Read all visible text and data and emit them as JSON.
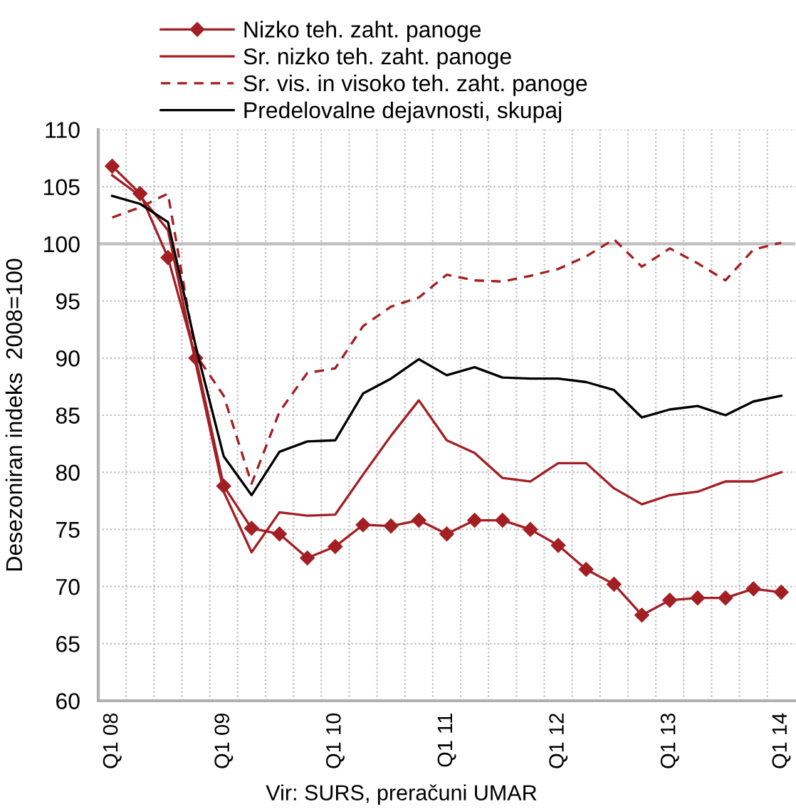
{
  "chart_data": {
    "type": "line",
    "ylabel": "Desezoniran indeks  2008=100",
    "annotations": [
      "Vir: SURS, preračuni UMAR"
    ],
    "categories": [
      "Q1 08",
      null,
      null,
      null,
      "Q1 09",
      null,
      null,
      null,
      "Q1 10",
      null,
      null,
      null,
      "Q1 11",
      null,
      null,
      null,
      "Q1 12",
      null,
      null,
      null,
      "Q1 13",
      null,
      null,
      null,
      "Q1 14"
    ],
    "series": [
      {
        "name": "Nizko teh. zaht. panoge",
        "color": "#a31f23",
        "marker": "diamond",
        "line_style": "solid",
        "values": [
          106.8,
          104.4,
          98.8,
          90.0,
          78.8,
          75.1,
          74.6,
          72.5,
          73.5,
          75.4,
          75.3,
          75.8,
          74.6,
          75.8,
          75.8,
          75.0,
          73.6,
          71.5,
          70.2,
          67.5,
          68.8,
          69.0,
          69.0,
          69.8,
          69.5
        ]
      },
      {
        "name": "Sr. nizko teh. zaht. panoge",
        "color": "#a31f23",
        "marker": "none",
        "line_style": "solid",
        "values": [
          106.0,
          104.2,
          101.2,
          89.5,
          78.3,
          73.0,
          76.5,
          76.2,
          76.3,
          79.8,
          83.2,
          86.3,
          82.8,
          81.7,
          79.5,
          79.2,
          80.8,
          80.8,
          78.6,
          77.2,
          78.0,
          78.3,
          79.2,
          79.2,
          80.0
        ]
      },
      {
        "name": "Sr. vis. in visoko teh. zaht. panoge",
        "color": "#a31f23",
        "marker": "none",
        "line_style": "dashed",
        "values": [
          102.3,
          103.2,
          104.4,
          90.3,
          86.7,
          79.0,
          85.3,
          88.7,
          89.1,
          92.8,
          94.5,
          95.3,
          97.3,
          96.8,
          96.7,
          97.2,
          97.8,
          98.9,
          100.4,
          98.0,
          99.6,
          98.3,
          96.8,
          99.5,
          100.1
        ]
      },
      {
        "name": "Predelovalne dejavnosti, skupaj",
        "color": "#000000",
        "marker": "none",
        "line_style": "solid",
        "values": [
          104.2,
          103.5,
          101.9,
          91.0,
          81.4,
          78.0,
          81.8,
          82.7,
          82.8,
          86.9,
          88.2,
          89.9,
          88.5,
          89.2,
          88.3,
          88.2,
          88.2,
          87.9,
          87.2,
          84.8,
          85.5,
          85.8,
          85.0,
          86.2,
          86.7
        ]
      }
    ],
    "ylim": [
      60,
      110
    ],
    "yticks": [
      60,
      65,
      70,
      75,
      80,
      85,
      90,
      95,
      100,
      105,
      110
    ],
    "ref_lines": [
      {
        "axis": "y",
        "value": 100,
        "color": "#bfbfbf"
      }
    ],
    "grid": true,
    "legend": "top"
  }
}
